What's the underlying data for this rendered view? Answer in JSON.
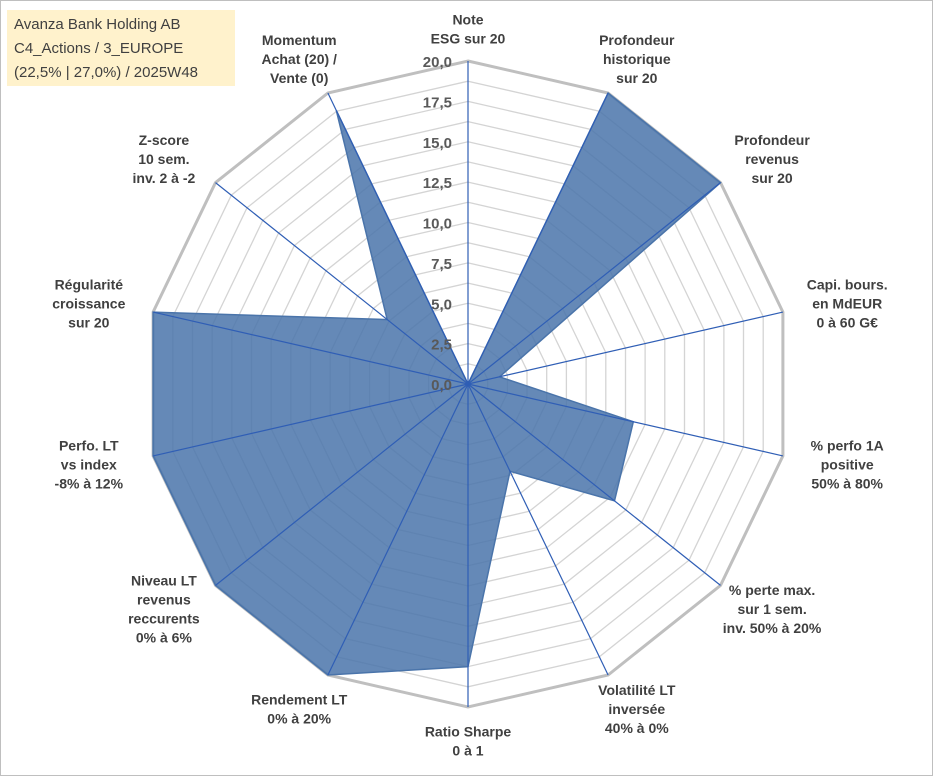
{
  "title_box": {
    "line1": "Avanza Bank Holding AB",
    "line2": "C4_Actions / 3_EUROPE",
    "line3": "(22,5% | 27,0%) / 2025W48"
  },
  "colors": {
    "fill": "#4a74aa",
    "axis": "#2f5eb5",
    "grid_outer": "#bfbfbf",
    "grid_inner": "#d4d4d4",
    "title_box_bg": "#fff2cc",
    "text": "#404040"
  },
  "chart_data": {
    "type": "radar",
    "rlim": [
      0,
      20
    ],
    "ticks": [
      "0,0",
      "2,5",
      "5,0",
      "7,5",
      "10,0",
      "12,5",
      "15,0",
      "17,5",
      "20,0"
    ],
    "tick_values": [
      0,
      2.5,
      5,
      7.5,
      10,
      12.5,
      15,
      17.5,
      20
    ],
    "grid": true,
    "categories": [
      [
        "Note",
        "ESG sur 20"
      ],
      [
        "Profondeur",
        "historique",
        "sur 20"
      ],
      [
        "Profondeur",
        "revenus",
        "sur 20"
      ],
      [
        "Capi. bours.",
        "en MdEUR",
        "0 à 60 G€"
      ],
      [
        "% perfo 1A",
        "positive",
        "50% à 80%"
      ],
      [
        "% perte max.",
        "sur 1 sem.",
        "inv. 50% à 20%"
      ],
      [
        "Volatilité LT",
        "inversée",
        "40% à 0%"
      ],
      [
        "Ratio Sharpe",
        "0 à 1"
      ],
      [
        "Rendement LT",
        "0% à 20%"
      ],
      [
        "Niveau LT",
        "revenus",
        "reccurents",
        "0% à 6%"
      ],
      [
        "Perfo. LT",
        "vs index",
        "-8% à 12%"
      ],
      [
        "Régularité",
        "croissance",
        "sur 20"
      ],
      [
        "Z-score",
        "10 sem.",
        "inv. 2 à -2"
      ],
      [
        "Momentum",
        "Achat (20) /",
        "Vente (0)"
      ]
    ],
    "values": [
      0,
      20,
      20,
      2.0,
      10.5,
      11.6,
      6.0,
      17.5,
      20,
      20,
      20,
      20,
      6.4,
      18.8
    ]
  }
}
